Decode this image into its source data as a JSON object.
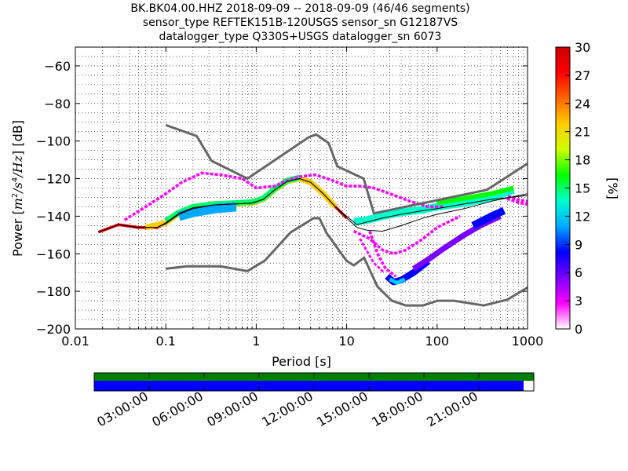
{
  "title_lines": [
    "BK.BK04.00.HHZ   2018-09-09 -- 2018-09-09  (46/46 segments)",
    "sensor_type REFTEK151B-120USGS sensor_sn G12187VS",
    "datalogger_type Q330S+USGS datalogger_sn 6073"
  ],
  "chart_data": {
    "type": "heatmap",
    "xlabel": "Period [s]",
    "ylabel_parts": [
      "Power [",
      "m",
      "2",
      "/",
      "s",
      "4",
      "/",
      "Hz",
      "] [dB]"
    ],
    "xscale": "log",
    "xlim": [
      0.01,
      1000
    ],
    "ylim": [
      -200,
      -50
    ],
    "x_ticks": [
      {
        "value": 0.01,
        "label": "0.01"
      },
      {
        "value": 0.1,
        "label": "0.1"
      },
      {
        "value": 1,
        "label": "1"
      },
      {
        "value": 10,
        "label": "10"
      },
      {
        "value": 100,
        "label": "100"
      },
      {
        "value": 1000,
        "label": "1000"
      }
    ],
    "y_ticks": [
      {
        "value": -60,
        "label": "−60"
      },
      {
        "value": -80,
        "label": "−80"
      },
      {
        "value": -100,
        "label": "−100"
      },
      {
        "value": -120,
        "label": "−120"
      },
      {
        "value": -140,
        "label": "−140"
      },
      {
        "value": -160,
        "label": "−160"
      },
      {
        "value": -180,
        "label": "−180"
      },
      {
        "value": -200,
        "label": "−200"
      }
    ],
    "colorbar": {
      "label": "[%]",
      "range": [
        0,
        30
      ],
      "ticks": [
        0,
        3,
        6,
        9,
        12,
        15,
        18,
        21,
        24,
        27,
        30
      ],
      "colors": [
        "#ffffff",
        "#ff00ff",
        "#7a00ff",
        "#0000ff",
        "#00aaff",
        "#00ffcc",
        "#00ff00",
        "#ccff00",
        "#ffcc00",
        "#ff6600",
        "#ff0000",
        "#cc0000"
      ]
    },
    "noise_models": [
      {
        "name": "NHNM",
        "color": "#666666",
        "points": [
          [
            0.1,
            -91.5
          ],
          [
            0.22,
            -97.4
          ],
          [
            0.32,
            -110.5
          ],
          [
            0.8,
            -120
          ],
          [
            3.8,
            -98
          ],
          [
            4.6,
            -96.5
          ],
          [
            6.3,
            -101
          ],
          [
            7.9,
            -113.5
          ],
          [
            15.4,
            -120
          ],
          [
            20,
            -138.5
          ],
          [
            354.8,
            -126
          ],
          [
            1000,
            -112
          ]
        ]
      },
      {
        "name": "NLNM",
        "color": "#666666",
        "points": [
          [
            0.1,
            -168
          ],
          [
            0.17,
            -166.7
          ],
          [
            0.4,
            -166.7
          ],
          [
            0.8,
            -169.2
          ],
          [
            1.24,
            -163.7
          ],
          [
            2.4,
            -148.6
          ],
          [
            4.3,
            -141.1
          ],
          [
            5,
            -141.1
          ],
          [
            6,
            -149
          ],
          [
            10,
            -163.8
          ],
          [
            12,
            -166.2
          ],
          [
            15.6,
            -162.1
          ],
          [
            21.9,
            -177.5
          ],
          [
            31.6,
            -185
          ],
          [
            45,
            -187.5
          ],
          [
            70,
            -187.5
          ],
          [
            101,
            -185
          ],
          [
            154,
            -185
          ],
          [
            328,
            -187.5
          ],
          [
            600,
            -184.4
          ],
          [
            1000,
            -178
          ]
        ]
      }
    ],
    "mode_line": {
      "color": "#000000",
      "points": [
        [
          0.018,
          -148.5
        ],
        [
          0.03,
          -144.5
        ],
        [
          0.05,
          -146
        ],
        [
          0.08,
          -146
        ],
        [
          0.1,
          -144
        ],
        [
          0.14,
          -139
        ],
        [
          0.2,
          -136
        ],
        [
          0.35,
          -134
        ],
        [
          0.6,
          -133.5
        ],
        [
          0.9,
          -133
        ],
        [
          1.2,
          -131
        ],
        [
          1.6,
          -126
        ],
        [
          2.2,
          -121.5
        ],
        [
          3,
          -120
        ],
        [
          4,
          -122
        ],
        [
          5.5,
          -128
        ],
        [
          7.5,
          -135
        ],
        [
          10,
          -141
        ],
        [
          13,
          -146
        ],
        [
          17,
          -147.5
        ],
        [
          25,
          -148
        ],
        [
          40,
          -145
        ],
        [
          70,
          -141
        ],
        [
          100,
          -139
        ],
        [
          200,
          -136
        ],
        [
          400,
          -132
        ],
        [
          1000,
          -128
        ]
      ]
    },
    "median_line": {
      "color": "#000000",
      "points": [
        [
          0.018,
          -148.5
        ],
        [
          0.03,
          -144.5
        ],
        [
          0.05,
          -146
        ],
        [
          0.08,
          -146
        ],
        [
          0.1,
          -143.5
        ],
        [
          0.14,
          -138.5
        ],
        [
          0.2,
          -135.5
        ],
        [
          0.35,
          -134
        ],
        [
          0.6,
          -133.5
        ],
        [
          0.9,
          -133
        ],
        [
          1.2,
          -131
        ],
        [
          1.6,
          -126
        ],
        [
          2.2,
          -121.5
        ],
        [
          3,
          -120
        ],
        [
          4,
          -122
        ],
        [
          5.5,
          -128
        ],
        [
          7.5,
          -135
        ],
        [
          10,
          -140
        ],
        [
          13,
          -144.5
        ],
        [
          17,
          -143
        ],
        [
          25,
          -141
        ],
        [
          40,
          -139
        ],
        [
          70,
          -137
        ],
        [
          100,
          -136
        ],
        [
          200,
          -133.5
        ],
        [
          400,
          -131
        ],
        [
          1000,
          -129
        ]
      ]
    },
    "density_bands": [
      {
        "level": "high",
        "color": "#ff0000",
        "width_db": 1.5,
        "points": [
          [
            0.018,
            -148.5
          ],
          [
            0.03,
            -144.5
          ],
          [
            0.05,
            -146
          ],
          [
            0.08,
            -146
          ],
          [
            0.1,
            -144
          ],
          [
            0.14,
            -139
          ],
          [
            0.2,
            -136
          ],
          [
            0.35,
            -134
          ],
          [
            0.6,
            -133.5
          ],
          [
            0.9,
            -133
          ],
          [
            1.2,
            -131
          ],
          [
            1.6,
            -126
          ],
          [
            2.2,
            -121.5
          ],
          [
            3,
            -120
          ],
          [
            4,
            -122
          ],
          [
            5.5,
            -128
          ],
          [
            7.5,
            -135
          ],
          [
            10,
            -141
          ]
        ]
      },
      {
        "level": "upper",
        "color": "#ffcc00",
        "width_db": 3,
        "points": [
          [
            0.06,
            -146
          ],
          [
            0.1,
            -143.5
          ],
          [
            0.14,
            -138.5
          ],
          [
            0.2,
            -135.5
          ],
          [
            0.35,
            -134
          ],
          [
            0.6,
            -133.5
          ],
          [
            0.9,
            -133
          ],
          [
            1.2,
            -131
          ],
          [
            1.6,
            -126
          ],
          [
            2.2,
            -121.5
          ],
          [
            3,
            -120
          ],
          [
            4,
            -122
          ],
          [
            5.5,
            -128
          ],
          [
            7.5,
            -135
          ]
        ]
      },
      {
        "level": "mid",
        "color": "#00ff66",
        "width_db": 3,
        "points": [
          [
            0.1,
            -142.5
          ],
          [
            0.14,
            -138
          ],
          [
            0.2,
            -135
          ],
          [
            0.35,
            -133.5
          ],
          [
            0.6,
            -133
          ],
          [
            0.9,
            -132.5
          ],
          [
            1.2,
            -130.5
          ],
          [
            1.6,
            -125.5
          ],
          [
            2.2,
            -121
          ],
          [
            3,
            -119.5
          ]
        ]
      },
      {
        "level": "mid",
        "color": "#00ffcc",
        "width_db": 4,
        "points": [
          [
            12,
            -143
          ],
          [
            17,
            -142
          ],
          [
            25,
            -140
          ],
          [
            40,
            -138
          ],
          [
            70,
            -136.5
          ],
          [
            100,
            -135
          ],
          [
            200,
            -133
          ],
          [
            400,
            -130
          ],
          [
            700,
            -126
          ]
        ]
      },
      {
        "level": "mid",
        "color": "#00ff00",
        "width_db": 2.5,
        "points": [
          [
            100,
            -133
          ],
          [
            200,
            -130.5
          ],
          [
            400,
            -128
          ],
          [
            700,
            -125
          ]
        ]
      },
      {
        "level": "low",
        "color": "#00aaff",
        "width_db": 5,
        "points": [
          [
            0.14,
            -140
          ],
          [
            0.2,
            -138
          ],
          [
            0.35,
            -136
          ],
          [
            0.6,
            -135
          ]
        ]
      },
      {
        "level": "low",
        "color": "#0000ff",
        "width_db": 3.5,
        "points": [
          [
            28,
            -172
          ],
          [
            33,
            -175
          ],
          [
            40,
            -174
          ],
          [
            55,
            -170
          ],
          [
            80,
            -164
          ]
        ]
      },
      {
        "level": "faint",
        "color": "#00ccff",
        "width_db": 2,
        "points": [
          [
            30,
            -173.5
          ],
          [
            36,
            -175.5
          ],
          [
            44,
            -173.5
          ]
        ]
      },
      {
        "level": "faint",
        "color": "#7a00ff",
        "width_db": 3,
        "points": [
          [
            55,
            -168
          ],
          [
            80,
            -163
          ],
          [
            120,
            -157
          ],
          [
            200,
            -150
          ],
          [
            300,
            -145
          ],
          [
            500,
            -140
          ]
        ]
      },
      {
        "level": "faint",
        "color": "#0000ff",
        "width_db": 4,
        "points": [
          [
            250,
            -145
          ],
          [
            400,
            -140
          ],
          [
            550,
            -137
          ]
        ]
      },
      {
        "level": "rare",
        "color": "#ff00ff",
        "width_db": 1.5,
        "points": [
          [
            0.035,
            -142
          ],
          [
            0.06,
            -135
          ],
          [
            0.1,
            -128
          ],
          [
            0.15,
            -122
          ],
          [
            0.25,
            -117
          ],
          [
            0.4,
            -118
          ],
          [
            0.7,
            -120
          ],
          [
            1,
            -125
          ],
          [
            1.6,
            -124
          ],
          [
            2.2,
            -121
          ],
          [
            3,
            -119
          ],
          [
            4.5,
            -118
          ],
          [
            7,
            -121
          ],
          [
            10,
            -124
          ],
          [
            14,
            -124
          ],
          [
            20,
            -125
          ],
          [
            30,
            -128
          ],
          [
            50,
            -132
          ],
          [
            80,
            -135
          ],
          [
            120,
            -135
          ]
        ]
      },
      {
        "level": "rare",
        "color": "#ff00ff",
        "width_db": 1.5,
        "points": [
          [
            12,
            -148
          ],
          [
            18,
            -152
          ],
          [
            25,
            -158
          ],
          [
            33,
            -160
          ],
          [
            45,
            -158
          ],
          [
            70,
            -152
          ],
          [
            100,
            -146
          ],
          [
            180,
            -140
          ]
        ]
      },
      {
        "level": "rare",
        "color": "#ff00ff",
        "width_db": 1.5,
        "points": [
          [
            18,
            -148
          ],
          [
            22,
            -160
          ],
          [
            27,
            -168
          ],
          [
            35,
            -172
          ]
        ]
      },
      {
        "level": "rare",
        "color": "#ff00ff",
        "width_db": 1.2,
        "points": [
          [
            14,
            -152
          ],
          [
            20,
            -165
          ],
          [
            26,
            -170
          ]
        ]
      },
      {
        "level": "rare",
        "color": "#ff00ff",
        "width_db": 3,
        "points": [
          [
            600,
            -130
          ],
          [
            800,
            -132
          ],
          [
            1000,
            -133
          ]
        ]
      }
    ]
  },
  "timeline": {
    "colors": {
      "coverage": "#008000",
      "data": "#0000ff",
      "gap": "#ffffff"
    },
    "labels": [
      "03:00:00",
      "06:00:00",
      "09:00:00",
      "12:00:00",
      "15:00:00",
      "18:00:00",
      "21:00:00"
    ]
  }
}
